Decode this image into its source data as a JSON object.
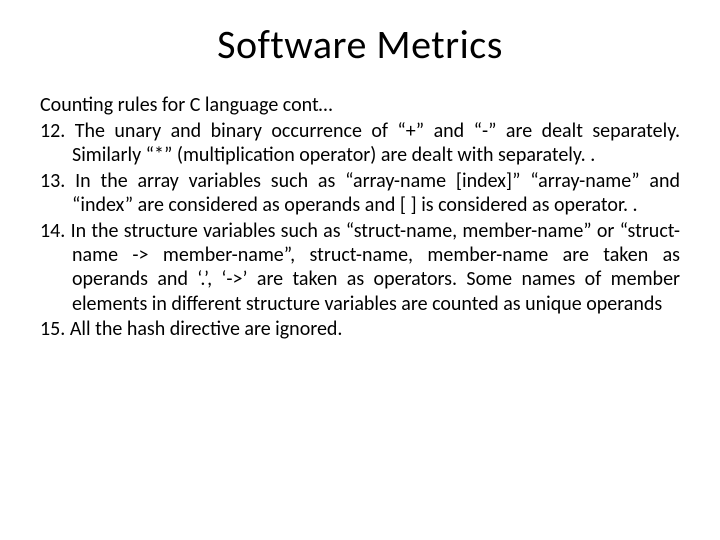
{
  "title": "Software Metrics",
  "subheading": "Counting rules for C language cont…",
  "items": [
    "The unary and binary occurrence of “+” and “-” are dealt separately. Similarly “*” (multiplication operator) are dealt with separately. .",
    "In the array variables such as “array-name [index]” “array-name” and “index” are considered as operands and [ ] is considered as operator. .",
    "In the structure variables such as “struct-name, member-name” or “struct-name -> member-name”, struct-name, member-name are taken as operands and ‘.’, ‘->’ are taken as operators. Some names of member elements in different structure variables are counted as unique operands",
    "All the hash directive are ignored."
  ],
  "styling": {
    "background_color": "#ffffff",
    "text_color": "#000000",
    "title_fontsize": 40,
    "body_fontsize": 20,
    "font_family": "Calibri",
    "list_start": 12,
    "slide_width": 720,
    "slide_height": 540,
    "text_align_body": "justify",
    "text_align_title": "center"
  }
}
